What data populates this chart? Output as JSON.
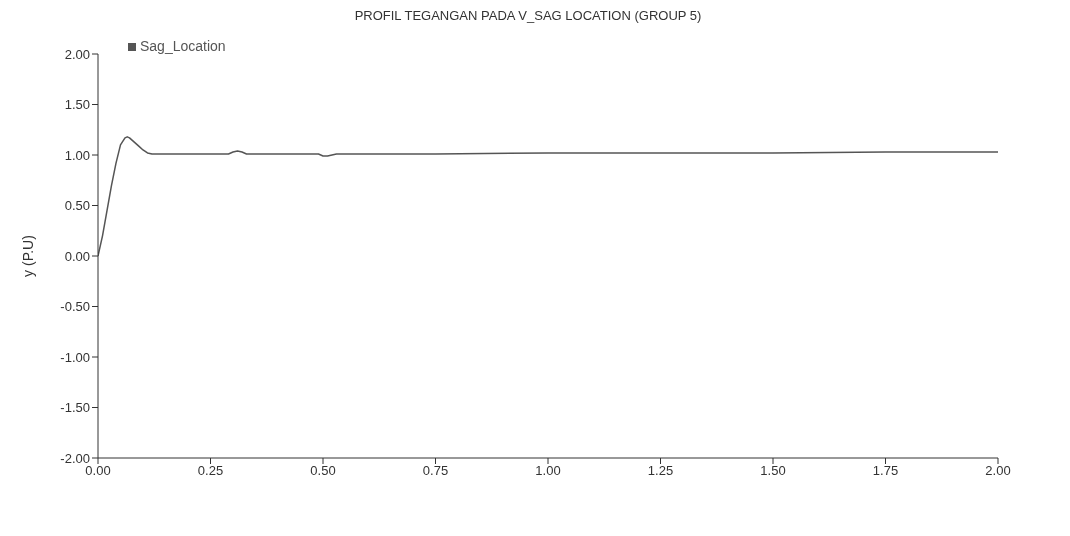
{
  "chart_data": {
    "type": "line",
    "title": "PROFIL TEGANGAN PADA V_SAG LOCATION (GROUP 5)",
    "ylabel": "y (P.U)",
    "x": [
      0,
      0.01,
      0.02,
      0.03,
      0.04,
      0.05,
      0.06,
      0.065,
      0.07,
      0.08,
      0.09,
      0.1,
      0.11,
      0.12,
      0.2,
      0.29,
      0.3,
      0.31,
      0.32,
      0.33,
      0.45,
      0.49,
      0.5,
      0.51,
      0.52,
      0.53,
      0.75,
      1.0,
      1.25,
      1.5,
      1.75,
      2.0
    ],
    "series": [
      {
        "name": "Sag_Location",
        "color": "#555555",
        "values": [
          0,
          0.2,
          0.45,
          0.7,
          0.92,
          1.1,
          1.17,
          1.18,
          1.17,
          1.13,
          1.09,
          1.05,
          1.02,
          1.01,
          1.01,
          1.01,
          1.03,
          1.04,
          1.03,
          1.01,
          1.01,
          1.01,
          0.99,
          0.99,
          1.0,
          1.01,
          1.01,
          1.02,
          1.02,
          1.02,
          1.03,
          1.03
        ]
      }
    ],
    "xlim": [
      0,
      2
    ],
    "xticks": [
      {
        "value": 0,
        "label": "0.00"
      },
      {
        "value": 0.25,
        "label": "0.25"
      },
      {
        "value": 0.5,
        "label": "0.50"
      },
      {
        "value": 0.75,
        "label": "0.75"
      },
      {
        "value": 1,
        "label": "1.00"
      },
      {
        "value": 1.25,
        "label": "1.25"
      },
      {
        "value": 1.5,
        "label": "1.50"
      },
      {
        "value": 1.75,
        "label": "1.75"
      },
      {
        "value": 2,
        "label": "2.00"
      }
    ],
    "ylim": [
      -2,
      2
    ],
    "yticks": [
      {
        "value": -2,
        "label": "-2.00"
      },
      {
        "value": -1.5,
        "label": "-1.50"
      },
      {
        "value": -1,
        "label": "-1.00"
      },
      {
        "value": -0.5,
        "label": "-0.50"
      },
      {
        "value": 0,
        "label": "0.00"
      },
      {
        "value": 0.5,
        "label": "0.50"
      },
      {
        "value": 1,
        "label": "1.00"
      },
      {
        "value": 1.5,
        "label": "1.50"
      },
      {
        "value": 2,
        "label": "2.00"
      }
    ],
    "legend": "top left",
    "marker": "none",
    "line_style": "solid"
  }
}
